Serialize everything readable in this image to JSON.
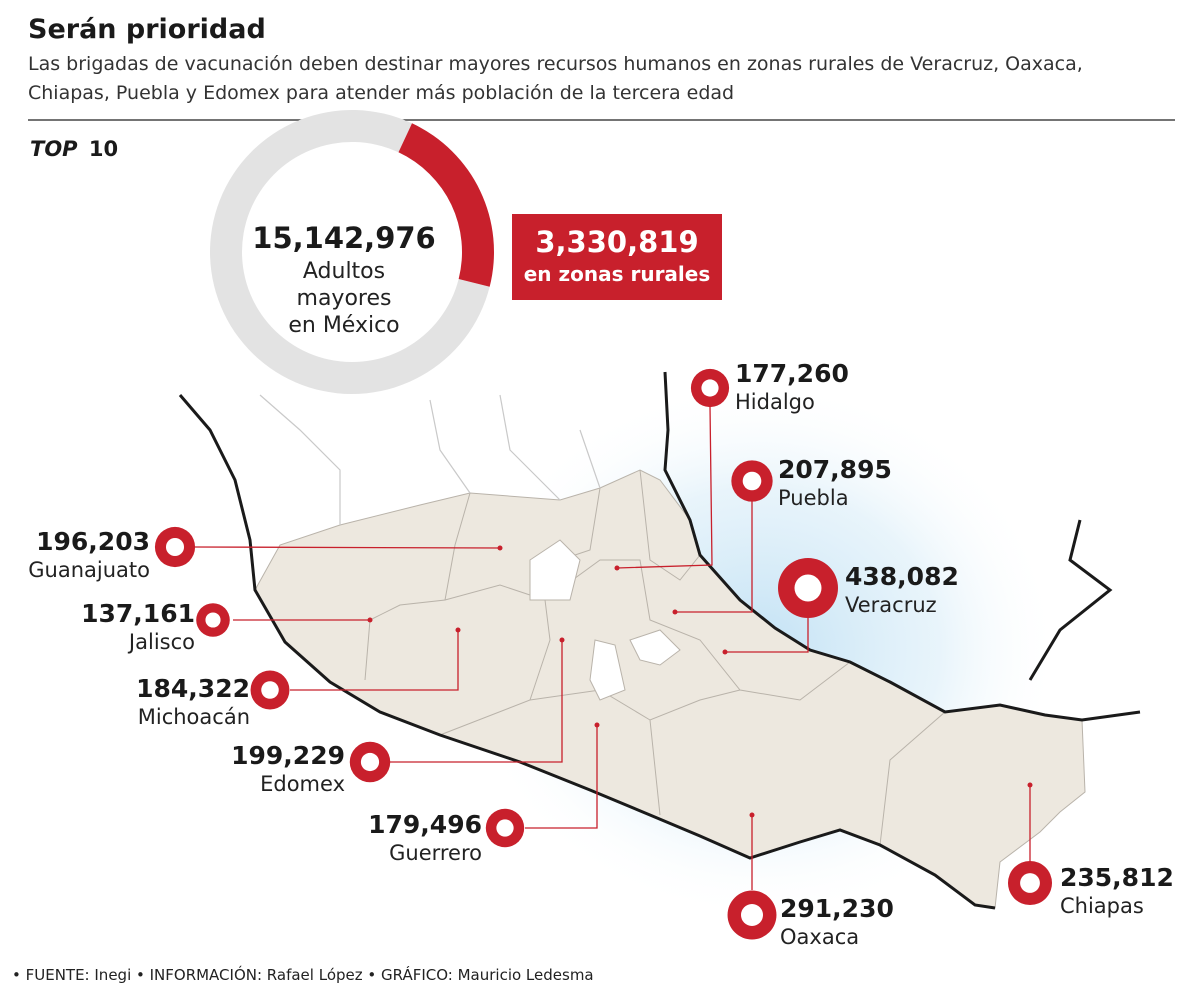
{
  "header": {
    "title": "Serán prioridad",
    "subtitle": [
      "Las brigadas de vacunación deben destinar mayores recursos humanos en zonas rurales de Veracruz, Oaxaca,",
      "Chiapas, Puebla y Edomex para atender más población de la tercera edad"
    ]
  },
  "badge": {
    "prefix": "TOP",
    "number": "10"
  },
  "donut": {
    "total": {
      "value": 15142976,
      "label": "15,142,976"
    },
    "total_caption": [
      "Adultos",
      "mayores",
      "en México"
    ],
    "rural": {
      "value": 3330819,
      "label": "3,330,819"
    },
    "rural_caption": "en zonas rurales"
  },
  "states": [
    {
      "name": "Hidalgo",
      "value": {
        "value": 177260,
        "label": "177,260"
      }
    },
    {
      "name": "Puebla",
      "value": {
        "value": 207895,
        "label": "207,895"
      }
    },
    {
      "name": "Veracruz",
      "value": {
        "value": 438082,
        "label": "438,082"
      }
    },
    {
      "name": "Guanajuato",
      "value": {
        "value": 196203,
        "label": "196,203"
      }
    },
    {
      "name": "Jalisco",
      "value": {
        "value": 137161,
        "label": "137,161"
      }
    },
    {
      "name": "Michoacán",
      "value": {
        "value": 184322,
        "label": "184,322"
      }
    },
    {
      "name": "Edomex",
      "value": {
        "value": 199229,
        "label": "199,229"
      }
    },
    {
      "name": "Guerrero",
      "value": {
        "value": 179496,
        "label": "179,496"
      }
    },
    {
      "name": "Oaxaca",
      "value": {
        "value": 291230,
        "label": "291,230"
      }
    },
    {
      "name": "Chiapas",
      "value": {
        "value": 235812,
        "label": "235,812"
      }
    }
  ],
  "footer": "• FUENTE: Inegi • INFORMACIÓN: Rafael López • GRÁFICO: Mauricio Ledesma"
}
